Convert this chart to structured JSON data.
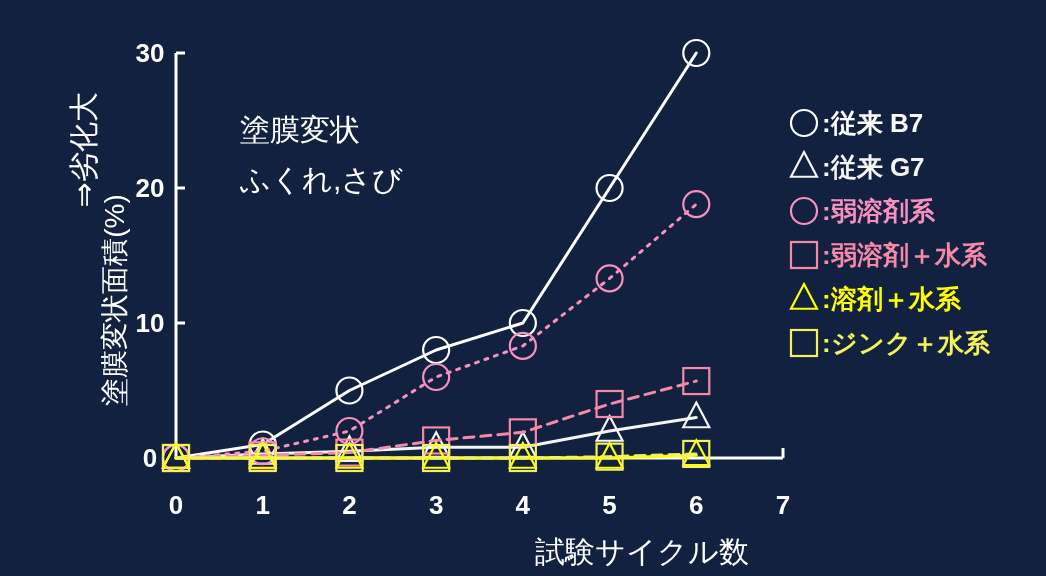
{
  "chart_data": {
    "type": "line",
    "xlabel": "試験サイクル数",
    "ylabel": "塗膜変状面積(%)",
    "annotations": [
      "⇒劣化大",
      "塗膜変状",
      "ふくれ,さび"
    ],
    "x": [
      0,
      1,
      2,
      3,
      4,
      5,
      6
    ],
    "xlim": [
      0,
      7
    ],
    "xticks": [
      0,
      1,
      2,
      3,
      4,
      5,
      6,
      7
    ],
    "ylim": [
      0,
      30
    ],
    "yticks": [
      0,
      10,
      20,
      30
    ],
    "grid": false,
    "legend": "right",
    "series": [
      {
        "name": ":従来 B7",
        "color": "#ffffff",
        "marker": "circle",
        "line_style": "solid",
        "values": [
          0,
          1,
          5,
          8,
          10,
          20,
          30
        ]
      },
      {
        "name": ":従来 G7",
        "color": "#f4f4f4",
        "marker": "triangle",
        "line_style": "solid",
        "values": [
          0,
          0.3,
          0.5,
          0.8,
          0.8,
          2,
          3
        ]
      },
      {
        "name": ":弱溶剤系",
        "color": "#f890c0",
        "marker": "circle",
        "line_style": "dotted",
        "values": [
          0,
          0.5,
          2,
          6,
          8.3,
          13.3,
          18.8
        ]
      },
      {
        "name": ":弱溶剤＋水系",
        "color": "#f58aa8",
        "marker": "square",
        "line_style": "dashed",
        "values": [
          0,
          0.2,
          0.4,
          1.3,
          1.9,
          4,
          5.7
        ]
      },
      {
        "name": ":溶剤＋水系",
        "color": "#ffff00",
        "marker": "triangle",
        "line_style": "solid",
        "values": [
          0,
          0,
          0,
          0,
          0,
          0,
          0.2
        ]
      },
      {
        "name": ":ジンク＋水系",
        "color": "#f2f25a",
        "marker": "square",
        "line_style": "dashed",
        "values": [
          0,
          0,
          0,
          0,
          0,
          0.1,
          0.3
        ]
      }
    ]
  }
}
